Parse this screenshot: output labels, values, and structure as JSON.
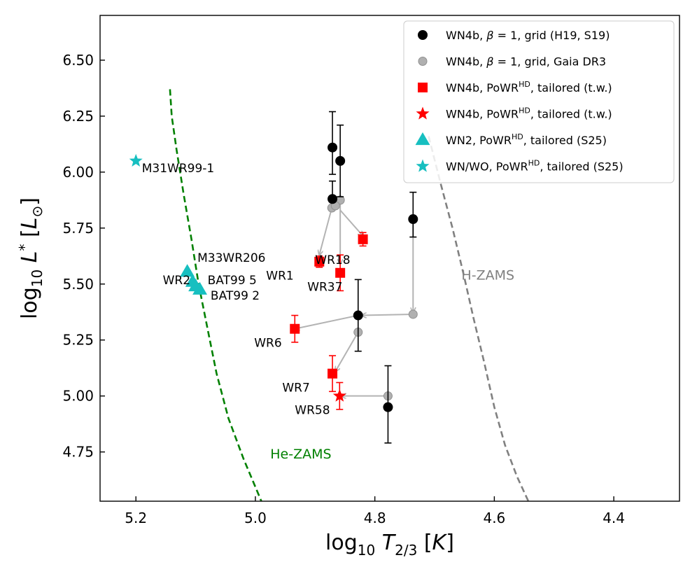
{
  "chart_data": {
    "type": "scatter",
    "xlabel": "log10 T2/3 [K]",
    "ylabel": "log10 L* [L⊙]",
    "xlim": [
      5.26,
      4.29
    ],
    "ylim": [
      4.53,
      6.7
    ],
    "xticks": [
      5.2,
      5.0,
      4.8,
      4.6,
      4.4
    ],
    "xtick_labels": [
      "5.2",
      "5.0",
      "4.8",
      "4.6",
      "4.4"
    ],
    "yticks": [
      4.75,
      5.0,
      5.25,
      5.5,
      5.75,
      6.0,
      6.25,
      6.5
    ],
    "ytick_labels": [
      "4.75",
      "5.00",
      "5.25",
      "5.50",
      "5.75",
      "6.00",
      "6.25",
      "6.50"
    ],
    "colors": {
      "grid": "#000000",
      "gaia": "#b0b0b0",
      "gaia_edge": "#909090",
      "tailored": "#ff0000",
      "s25": "#17bfc0",
      "he_zams": "#008000",
      "h_zams": "#808080",
      "arrow": "#b3b3b3"
    },
    "legend": {
      "position": "top-right",
      "entries": [
        {
          "marker": "circle",
          "color": "#000000",
          "text": "WN4b, β = 1, grid (H19, S19)"
        },
        {
          "marker": "circle-gray",
          "color": "#b0b0b0",
          "text": "WN4b, β = 1, grid, Gaia DR3"
        },
        {
          "marker": "square",
          "color": "#ff0000",
          "text": "WN4b, PoWRHD, tailored (t.w.)"
        },
        {
          "marker": "star",
          "color": "#ff0000",
          "text": "WN4b, PoWRHD, tailored (t.w.)"
        },
        {
          "marker": "triangle",
          "color": "#17bfc0",
          "text": "WN2, PoWRHD, tailored (S25)"
        },
        {
          "marker": "star",
          "color": "#17bfc0",
          "text": "WN/WO, PoWRHD, tailored (S25)"
        }
      ]
    },
    "curves": [
      {
        "name": "He-ZAMS",
        "color": "#008000",
        "label_at": [
          4.975,
          4.72
        ],
        "points": [
          [
            5.143,
            6.37
          ],
          [
            5.14,
            6.25
          ],
          [
            5.132,
            6.1
          ],
          [
            5.12,
            5.9
          ],
          [
            5.107,
            5.7
          ],
          [
            5.095,
            5.5
          ],
          [
            5.08,
            5.3
          ],
          [
            5.065,
            5.1
          ],
          [
            5.045,
            4.9
          ],
          [
            5.02,
            4.72
          ],
          [
            4.99,
            4.53
          ]
        ]
      },
      {
        "name": "H-ZAMS",
        "color": "#808080",
        "label_at": [
          4.655,
          5.52
        ],
        "points": [
          [
            4.71,
            6.16
          ],
          [
            4.69,
            5.95
          ],
          [
            4.67,
            5.75
          ],
          [
            4.652,
            5.55
          ],
          [
            4.635,
            5.35
          ],
          [
            4.617,
            5.15
          ],
          [
            4.6,
            4.95
          ],
          [
            4.582,
            4.78
          ],
          [
            4.562,
            4.64
          ],
          [
            4.543,
            4.53
          ]
        ]
      }
    ],
    "grid_points": [
      {
        "x": 4.871,
        "y": 6.11,
        "yerr": [
          0.12,
          0.16
        ]
      },
      {
        "x": 4.858,
        "y": 6.05,
        "yerr": [
          0.16,
          0.16
        ]
      },
      {
        "x": 4.871,
        "y": 5.88,
        "yerr": [
          0.0,
          0.08
        ]
      },
      {
        "x": 4.736,
        "y": 5.79,
        "yerr": [
          0.08,
          0.12
        ]
      },
      {
        "x": 4.828,
        "y": 5.36,
        "yerr": [
          0.16,
          0.16
        ]
      },
      {
        "x": 4.778,
        "y": 4.95,
        "yerr": [
          0.16,
          0.185
        ]
      }
    ],
    "gaia_points": [
      {
        "x": 4.872,
        "y": 5.84
      },
      {
        "x": 4.858,
        "y": 5.875
      },
      {
        "x": 4.866,
        "y": 5.85
      },
      {
        "x": 4.736,
        "y": 5.365
      },
      {
        "x": 4.828,
        "y": 5.285
      },
      {
        "x": 4.778,
        "y": 5.0
      }
    ],
    "arrows": [
      {
        "from": [
          4.872,
          5.84
        ],
        "to": [
          4.893,
          5.63
        ]
      },
      {
        "from": [
          4.858,
          5.875
        ],
        "to": [
          4.858,
          5.59
        ]
      },
      {
        "from": [
          4.858,
          5.83
        ],
        "to": [
          4.82,
          5.715
        ]
      },
      {
        "from": [
          4.736,
          5.79
        ],
        "to": [
          4.736,
          5.375
        ]
      },
      {
        "from": [
          4.736,
          5.365
        ],
        "to": [
          4.822,
          5.36
        ]
      },
      {
        "from": [
          4.828,
          5.36
        ],
        "to": [
          4.934,
          5.3
        ]
      },
      {
        "from": [
          4.828,
          5.285
        ],
        "to": [
          4.866,
          5.11
        ]
      },
      {
        "from": [
          4.778,
          5.0
        ],
        "to": [
          4.856,
          5.0
        ]
      }
    ],
    "tailored_squares": [
      {
        "name": "WR1",
        "x": 4.893,
        "y": 5.6,
        "yerr": [
          0.025,
          0.025
        ]
      },
      {
        "name": "WR18",
        "x": 4.82,
        "y": 5.7,
        "yerr": [
          0.03,
          0.03
        ]
      },
      {
        "name": "WR37",
        "x": 4.858,
        "y": 5.55,
        "yerr": [
          0.08,
          0.08
        ]
      },
      {
        "name": "WR6",
        "x": 4.934,
        "y": 5.3,
        "yerr": [
          0.06,
          0.06
        ]
      },
      {
        "name": "WR7",
        "x": 4.871,
        "y": 5.1,
        "yerr": [
          0.08,
          0.08
        ]
      }
    ],
    "tailored_stars": [
      {
        "name": "WR58",
        "x": 4.859,
        "y": 5.0,
        "yerr": [
          0.06,
          0.06
        ]
      }
    ],
    "s25_triangles": [
      {
        "name": "WR2",
        "x": 5.114,
        "y": 5.555
      },
      {
        "name": "M33WR206",
        "x": 5.105,
        "y": 5.51
      },
      {
        "name": "BAT99 5",
        "x": 5.1,
        "y": 5.49
      },
      {
        "name": "BAT99 2",
        "x": 5.093,
        "y": 5.475
      }
    ],
    "s25_stars": [
      {
        "name": "M31WR99-1",
        "x": 5.2,
        "y": 6.05
      }
    ],
    "annotations": [
      {
        "text": "WR1",
        "x": 4.982,
        "y": 5.52
      },
      {
        "text": "WR18",
        "x": 4.9,
        "y": 5.59
      },
      {
        "text": "WR37",
        "x": 4.913,
        "y": 5.47
      },
      {
        "text": "WR6",
        "x": 5.002,
        "y": 5.22
      },
      {
        "text": "WR7",
        "x": 4.955,
        "y": 5.02
      },
      {
        "text": "WR58",
        "x": 4.934,
        "y": 4.92
      },
      {
        "text": "WR2",
        "x": 5.155,
        "y": 5.5
      },
      {
        "text": "M33WR206",
        "x": 5.097,
        "y": 5.6
      },
      {
        "text": "BAT99 5",
        "x": 5.08,
        "y": 5.5
      },
      {
        "text": "BAT99 2",
        "x": 5.075,
        "y": 5.43
      },
      {
        "text": "M31WR99-1",
        "x": 5.19,
        "y": 6.0
      }
    ]
  }
}
